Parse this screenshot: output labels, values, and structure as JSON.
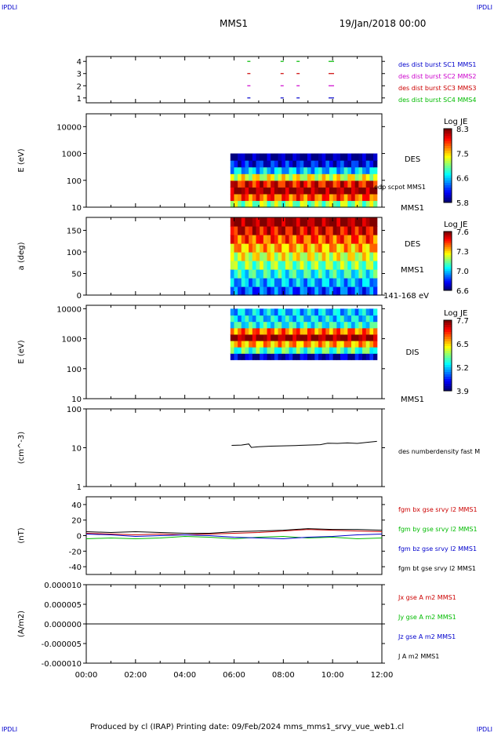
{
  "header": {
    "corner_left": "IPDLI",
    "corner_right": "IPDLI",
    "title": "MMS1",
    "date": "19/Jan/2018 00:00",
    "footer": "Produced by cl (IRAP)   Printing date: 09/Feb/2024   mms_mms1_srvy_vue_web1.cl",
    "footer_corner_left": "IPDLI",
    "footer_corner_right": "IPDLI"
  },
  "colors": {
    "red": "#cc0000",
    "magenta": "#cc00cc",
    "green": "#00bb00",
    "blue": "#0000cc",
    "black": "#000000"
  },
  "chart_data": [
    {
      "id": "burst",
      "type": "scatter",
      "ylabel": "",
      "yticks": [
        "1",
        "2",
        "3",
        "4"
      ],
      "ylim": [
        0.6,
        4.4
      ],
      "xlim": [
        0,
        12
      ],
      "series": [
        {
          "name": "des dist burst SC1 MMS1",
          "color": "#0000cc",
          "y": 1,
          "x": [
            6.6,
            7.95,
            8.6,
            9.9
          ]
        },
        {
          "name": "des dist burst SC2 MMS2",
          "color": "#cc00cc",
          "y": 2,
          "x": [
            6.6,
            7.95,
            8.6,
            9.9
          ]
        },
        {
          "name": "des dist burst SC3 MMS3",
          "color": "#cc0000",
          "y": 3,
          "x": [
            6.6,
            7.95,
            8.6,
            9.9
          ]
        },
        {
          "name": "des dist burst SC4 MMS4",
          "color": "#00bb00",
          "y": 4,
          "x": [
            6.6,
            7.95,
            8.6,
            9.9
          ]
        }
      ]
    },
    {
      "id": "des-spectrogram",
      "type": "heatmap",
      "ylabel": "E (eV)",
      "yscale": "log",
      "ylim": [
        10,
        30000
      ],
      "yticks": [
        "10",
        "100",
        "1000",
        "10000"
      ],
      "xrange": [
        5.85,
        11.8
      ],
      "yrange": [
        10,
        1000
      ],
      "right_labels": [
        "DES",
        "edp scpot MMS1",
        "MMS1"
      ],
      "colorbar": {
        "title": "Log JE",
        "ticks": [
          "8.3",
          "7.5",
          "6.6",
          "5.8"
        ],
        "min": 5.8,
        "max": 8.3
      },
      "levels_by_energy": [
        7.1,
        7.8,
        8.3,
        8.0,
        7.3,
        6.6,
        6.1,
        5.8
      ]
    },
    {
      "id": "des-pitch",
      "type": "heatmap",
      "ylabel": "a (deg)",
      "ylim": [
        0,
        180
      ],
      "yticks": [
        "0",
        "50",
        "100",
        "150"
      ],
      "xrange": [
        5.85,
        11.8
      ],
      "right_labels": [
        "DES",
        "MMS1",
        "141-168 eV"
      ],
      "colorbar": {
        "title": "Log JE",
        "ticks": [
          "7.6",
          "7.3",
          "7.0",
          "6.6"
        ],
        "min": 6.6,
        "max": 7.6
      },
      "levels_by_angle": [
        6.8,
        6.9,
        7.0,
        7.1,
        7.2,
        7.3,
        7.4,
        7.5,
        7.6
      ]
    },
    {
      "id": "dis-spectrogram",
      "type": "heatmap",
      "ylabel": "E (eV)",
      "yscale": "log",
      "ylim": [
        10,
        13000
      ],
      "yticks": [
        "10",
        "100",
        "1000",
        "10000"
      ],
      "xrange": [
        5.85,
        11.8
      ],
      "yrange": [
        200,
        10000
      ],
      "right_labels": [
        "DIS",
        "MMS1"
      ],
      "colorbar": {
        "title": "Log JE",
        "ticks": [
          "7.7",
          "6.5",
          "5.2",
          "3.9"
        ],
        "min": 3.9,
        "max": 7.7
      },
      "levels_by_energy": [
        4.1,
        5.6,
        6.6,
        7.7,
        6.8,
        5.4,
        5.2,
        5.1
      ]
    },
    {
      "id": "density",
      "type": "line",
      "ylabel": "(cm^-3)",
      "yscale": "log",
      "ylim": [
        1,
        100
      ],
      "yticks": [
        "1",
        "10",
        "100"
      ],
      "series": [
        {
          "name": "des numberdensity fast M",
          "color": "#000000",
          "x": [
            5.9,
            6.3,
            6.6,
            6.7,
            7.0,
            7.5,
            8.0,
            8.5,
            9.0,
            9.5,
            9.8,
            10.2,
            10.6,
            11.0,
            11.4,
            11.8
          ],
          "y": [
            11.5,
            11.7,
            12.5,
            10.2,
            10.6,
            11.0,
            11.2,
            11.4,
            11.7,
            12.0,
            13.1,
            12.9,
            13.3,
            12.9,
            13.8,
            14.6
          ]
        }
      ]
    },
    {
      "id": "fgm",
      "type": "line",
      "ylabel": "(nT)",
      "ylim": [
        -50,
        50
      ],
      "yticks": [
        "-40",
        "-20",
        "0",
        "20",
        "40"
      ],
      "series": [
        {
          "name": "fgm bx gse srvy l2 MMS1",
          "color": "#cc0000",
          "x": [
            0,
            1,
            2,
            3,
            4,
            5,
            6,
            7,
            8,
            9,
            10,
            11,
            12
          ],
          "y": [
            3,
            2,
            1,
            2,
            1,
            2,
            3,
            4,
            6,
            8,
            7,
            6,
            5
          ]
        },
        {
          "name": "fgm by gse srvy l2 MMS1",
          "color": "#00bb00",
          "x": [
            0,
            1,
            2,
            3,
            4,
            5,
            6,
            7,
            8,
            9,
            10,
            11,
            12
          ],
          "y": [
            -4,
            -3,
            -4,
            -3,
            -1,
            -2,
            -4,
            -2,
            -1,
            -3,
            -2,
            -4,
            -3
          ]
        },
        {
          "name": "fgm bz gse srvy l2 MMS1",
          "color": "#0000cc",
          "x": [
            0,
            1,
            2,
            3,
            4,
            5,
            6,
            7,
            8,
            9,
            10,
            11,
            12
          ],
          "y": [
            2,
            1,
            -1,
            0,
            1,
            0,
            -2,
            -3,
            -4,
            -2,
            -1,
            1,
            2
          ]
        },
        {
          "name": "fgm bt gse srvy l2 MMS1",
          "color": "#000000",
          "x": [
            0,
            1,
            2,
            3,
            4,
            5,
            6,
            7,
            8,
            9,
            10,
            11,
            12
          ],
          "y": [
            5,
            4,
            5,
            4,
            3,
            3,
            5,
            6,
            7,
            9,
            8,
            8,
            7
          ]
        }
      ]
    },
    {
      "id": "current",
      "type": "line",
      "ylabel": "(A/m2)",
      "ylim": [
        -1e-05,
        1e-05
      ],
      "yticks": [
        "-0.000010",
        "-0.000005",
        "0.000000",
        "0.000005",
        "0.000010"
      ],
      "xticks": [
        "00:00",
        "02:00",
        "04:00",
        "06:00",
        "08:00",
        "10:00",
        "12:00"
      ],
      "series": [
        {
          "name": "Jx gse A m2 MMS1",
          "color": "#cc0000",
          "x": [],
          "y": []
        },
        {
          "name": "Jy gse A m2 MMS1",
          "color": "#00bb00",
          "x": [],
          "y": []
        },
        {
          "name": "Jz gse A m2 MMS1",
          "color": "#0000cc",
          "x": [],
          "y": []
        },
        {
          "name": "J A m2 MMS1",
          "color": "#000000",
          "x": [
            0,
            2,
            4,
            6,
            8,
            10,
            12
          ],
          "y": [
            0,
            0,
            0,
            0,
            0,
            0,
            0
          ]
        }
      ]
    }
  ]
}
